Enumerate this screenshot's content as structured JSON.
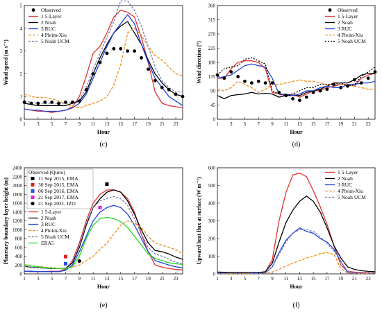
{
  "chart_data": [
    {
      "id": "c",
      "type": "line",
      "panel_label": "(c)",
      "xlabel": "Hour",
      "ylabel": "Wind speed (m s⁻¹)",
      "xlim": [
        1,
        24
      ],
      "ylim": [
        0,
        5
      ],
      "xticks": [
        1,
        3,
        5,
        7,
        9,
        11,
        13,
        15,
        17,
        19,
        21,
        23
      ],
      "yticks": [
        0,
        1,
        2,
        3,
        4,
        5
      ],
      "legend_position": "top-left",
      "x": [
        1,
        2,
        3,
        4,
        5,
        6,
        7,
        8,
        9,
        10,
        11,
        12,
        13,
        14,
        15,
        16,
        17,
        18,
        19,
        20,
        21,
        22,
        23,
        24
      ],
      "observed": {
        "name": "Observed",
        "color": "#000000",
        "values": [
          0.75,
          0.7,
          0.7,
          0.75,
          0.75,
          0.7,
          0.75,
          0.75,
          0.8,
          1.3,
          2.0,
          2.5,
          2.9,
          3.1,
          3.1,
          3.0,
          3.0,
          2.7,
          2.2,
          1.7,
          1.4,
          1.3,
          1.1,
          1.0
        ]
      },
      "series": [
        {
          "name": "1 5-Layer",
          "color": "#e03030",
          "dash": "",
          "values": [
            0.45,
            0.4,
            0.35,
            0.35,
            0.3,
            0.35,
            0.4,
            0.55,
            1.0,
            1.9,
            2.9,
            3.2,
            3.8,
            4.5,
            4.8,
            4.7,
            4.5,
            3.6,
            2.5,
            1.2,
            0.7,
            0.6,
            0.55,
            0.5
          ]
        },
        {
          "name": "2 Noah",
          "color": "#000000",
          "dash": "",
          "values": [
            0.7,
            0.65,
            0.6,
            0.6,
            0.6,
            0.6,
            0.6,
            0.7,
            0.8,
            1.2,
            2.0,
            2.7,
            3.3,
            3.8,
            4.1,
            4.3,
            3.8,
            3.3,
            2.6,
            2.0,
            1.6,
            1.3,
            1.1,
            1.0
          ]
        },
        {
          "name": "3 RUC",
          "color": "#1f3fd8",
          "dash": "",
          "values": [
            0.45,
            0.4,
            0.4,
            0.35,
            0.35,
            0.35,
            0.4,
            0.5,
            0.7,
            1.1,
            1.8,
            2.5,
            3.2,
            3.8,
            4.2,
            4.6,
            4.2,
            3.3,
            2.5,
            1.8,
            1.4,
            1.0,
            0.8,
            0.6
          ]
        },
        {
          "name": "4 Pleim-Xiu",
          "color": "#f08c1e",
          "dash": "4,2",
          "values": [
            1.1,
            1.0,
            0.95,
            0.95,
            0.9,
            0.8,
            0.7,
            0.55,
            0.5,
            0.6,
            0.7,
            0.8,
            1.0,
            1.5,
            2.4,
            3.8,
            4.0,
            3.7,
            3.2,
            2.8,
            2.6,
            2.3,
            2.0,
            1.9
          ]
        },
        {
          "name": "5 Noah UCM",
          "color": "#7a7ab8",
          "dash": "3,2",
          "values": [
            0.8,
            0.75,
            0.7,
            0.7,
            0.7,
            0.7,
            0.7,
            0.75,
            0.85,
            1.4,
            2.2,
            2.9,
            3.6,
            4.3,
            5.2,
            5.2,
            4.8,
            4.1,
            3.2,
            2.3,
            1.7,
            1.4,
            1.2,
            1.2
          ]
        }
      ]
    },
    {
      "id": "d",
      "type": "line",
      "panel_label": "(d)",
      "xlabel": "Hour",
      "ylabel": "Wind direction (º)",
      "xlim": [
        1,
        24
      ],
      "ylim": [
        0,
        360
      ],
      "xticks": [
        1,
        3,
        5,
        7,
        9,
        11,
        13,
        15,
        17,
        19,
        21,
        23
      ],
      "yticks": [
        0,
        45,
        90,
        135,
        180,
        225,
        270,
        315,
        360
      ],
      "legend_position": "top-right",
      "x": [
        1,
        2,
        3,
        4,
        5,
        6,
        7,
        8,
        9,
        10,
        11,
        12,
        13,
        14,
        15,
        16,
        17,
        18,
        19,
        20,
        21,
        22,
        23,
        24
      ],
      "observed": {
        "name": "Observed",
        "color": "#000000",
        "values": [
          140,
          130,
          150,
          135,
          120,
          115,
          120,
          115,
          115,
          85,
          75,
          65,
          60,
          70,
          85,
          90,
          95,
          110,
          100,
          105,
          125,
          115,
          130,
          150
        ]
      },
      "series": [
        {
          "name": "1 5-Layer",
          "color": "#e03030",
          "dash": "",
          "values": [
            130,
            130,
            160,
            180,
            185,
            185,
            180,
            160,
            85,
            80,
            75,
            80,
            70,
            80,
            90,
            90,
            100,
            105,
            110,
            110,
            105,
            130,
            140,
            145
          ]
        },
        {
          "name": "2 Noah",
          "color": "#000000",
          "dash": "",
          "values": [
            75,
            65,
            75,
            78,
            80,
            85,
            80,
            82,
            80,
            70,
            75,
            75,
            75,
            85,
            90,
            95,
            105,
            115,
            115,
            115,
            125,
            140,
            145,
            145
          ]
        },
        {
          "name": "3 RUC",
          "color": "#1f3fd8",
          "dash": "",
          "values": [
            130,
            135,
            140,
            155,
            170,
            175,
            170,
            165,
            130,
            80,
            80,
            75,
            80,
            90,
            90,
            100,
            105,
            100,
            100,
            110,
            110,
            115,
            115,
            120
          ]
        },
        {
          "name": "4 Pleim-Xiu",
          "color": "#f08c1e",
          "dash": "4,2",
          "values": [
            95,
            90,
            100,
            120,
            110,
            100,
            85,
            95,
            110,
            110,
            115,
            120,
            125,
            120,
            120,
            115,
            110,
            110,
            110,
            110,
            105,
            100,
            95,
            95
          ]
        },
        {
          "name": "5 Noah UCM",
          "color": "#000000",
          "dash": "2,2",
          "values": [
            140,
            160,
            165,
            170,
            190,
            195,
            185,
            175,
            90,
            80,
            75,
            80,
            90,
            100,
            100,
            110,
            110,
            110,
            115,
            105,
            110,
            135,
            150,
            165
          ]
        }
      ]
    },
    {
      "id": "e",
      "type": "line",
      "panel_label": "(e)",
      "xlabel": "Hour",
      "ylabel": "Planetary boundary layer height (m)",
      "xlim": [
        1,
        24
      ],
      "ylim": [
        0,
        2400
      ],
      "xticks": [
        1,
        3,
        5,
        7,
        9,
        11,
        13,
        15,
        17,
        19,
        21,
        23
      ],
      "yticks": [
        0,
        200,
        400,
        600,
        800,
        1000,
        1200,
        1400,
        1600,
        1800,
        2000,
        2200,
        2400
      ],
      "legend_position": "top-left",
      "x": [
        1,
        2,
        3,
        4,
        5,
        6,
        7,
        8,
        9,
        10,
        11,
        12,
        13,
        14,
        15,
        16,
        17,
        18,
        19,
        20,
        21,
        22,
        23,
        24
      ],
      "observed_title": "Observed (Quito)",
      "observed_points": [
        {
          "name": "11 Sep 2015, EMA",
          "color": "#000000",
          "marker": "square",
          "x": 13,
          "y": 2030
        },
        {
          "name": "30 Sep 2015, EMA",
          "color": "#e02020",
          "marker": "square",
          "x": 7,
          "y": 390
        },
        {
          "name": "06 Sep 2016, EMA",
          "color": "#2050e0",
          "marker": "square",
          "x": 7,
          "y": 230
        },
        {
          "name": "21 Sep 2017, EMA",
          "color": "#e020e0",
          "marker": "square",
          "x": 12,
          "y": 1500
        },
        {
          "name": "21 Sep 2021, IZO",
          "color": "#000000",
          "marker": "circle",
          "x": 9,
          "y": 290
        }
      ],
      "series": [
        {
          "name": "1 5-Layer",
          "color": "#e03030",
          "dash": "",
          "values": [
            60,
            50,
            50,
            50,
            60,
            60,
            100,
            300,
            700,
            1200,
            1600,
            1800,
            1900,
            1900,
            1850,
            1700,
            1400,
            900,
            500,
            200,
            150,
            120,
            100,
            90
          ]
        },
        {
          "name": "2 Noah",
          "color": "#000000",
          "dash": "",
          "values": [
            170,
            150,
            140,
            130,
            120,
            120,
            120,
            250,
            600,
            1100,
            1500,
            1700,
            1850,
            1900,
            1850,
            1650,
            1350,
            1000,
            700,
            530,
            500,
            450,
            380,
            330
          ]
        },
        {
          "name": "3 RUC",
          "color": "#1f3fd8",
          "dash": "",
          "values": [
            60,
            60,
            50,
            50,
            50,
            50,
            80,
            200,
            500,
            850,
            1200,
            1400,
            1500,
            1550,
            1500,
            1350,
            1100,
            800,
            500,
            300,
            250,
            200,
            160,
            140
          ]
        },
        {
          "name": "4 Pleim-Xiu",
          "color": "#f08c1e",
          "dash": "4,2",
          "values": [
            200,
            180,
            170,
            150,
            140,
            130,
            120,
            150,
            200,
            300,
            400,
            550,
            700,
            900,
            1100,
            1200,
            1150,
            1050,
            850,
            700,
            650,
            600,
            550,
            450
          ]
        },
        {
          "name": "5 Noah UCM",
          "color": "#7a7ab8",
          "dash": "3,2",
          "values": [
            170,
            150,
            140,
            130,
            120,
            120,
            130,
            280,
            650,
            1150,
            1500,
            1650,
            1700,
            1750,
            1700,
            1550,
            1250,
            900,
            600,
            450,
            400,
            330,
            260,
            230
          ]
        },
        {
          "name": "ERA5",
          "color": "#22dd22",
          "dash": "",
          "values": [
            210,
            180,
            160,
            140,
            130,
            120,
            110,
            160,
            400,
            800,
            1100,
            1250,
            1280,
            1250,
            1180,
            1050,
            850,
            650,
            450,
            350,
            300,
            250,
            230,
            210
          ]
        }
      ]
    },
    {
      "id": "f",
      "type": "line",
      "panel_label": "(f)",
      "xlabel": "Hour",
      "ylabel": "Upward heat flux at surface (W m⁻²)",
      "xlim": [
        1,
        24
      ],
      "ylim": [
        0,
        600
      ],
      "xticks": [
        1,
        3,
        5,
        7,
        9,
        11,
        13,
        15,
        17,
        19,
        21,
        23
      ],
      "yticks": [
        0,
        100,
        200,
        300,
        400,
        500,
        600
      ],
      "legend_position": "top-right",
      "x": [
        1,
        2,
        3,
        4,
        5,
        6,
        7,
        8,
        9,
        10,
        11,
        12,
        13,
        14,
        15,
        16,
        17,
        18,
        19,
        20,
        21,
        22,
        23,
        24
      ],
      "series": [
        {
          "name": "1 5-Layer",
          "color": "#e03030",
          "dash": "",
          "values": [
            5,
            5,
            4,
            4,
            4,
            4,
            4,
            10,
            80,
            300,
            460,
            560,
            570,
            550,
            470,
            380,
            280,
            160,
            50,
            15,
            10,
            8,
            6,
            5
          ]
        },
        {
          "name": "2 Noah",
          "color": "#000000",
          "dash": "",
          "values": [
            10,
            9,
            8,
            8,
            8,
            8,
            8,
            12,
            60,
            180,
            290,
            360,
            410,
            440,
            410,
            350,
            260,
            160,
            90,
            40,
            25,
            18,
            14,
            12
          ]
        },
        {
          "name": "3 RUC",
          "color": "#1f3fd8",
          "dash": "",
          "values": [
            3,
            3,
            3,
            3,
            3,
            3,
            3,
            5,
            40,
            120,
            190,
            230,
            260,
            240,
            230,
            200,
            180,
            140,
            70,
            8,
            5,
            4,
            4,
            3
          ]
        },
        {
          "name": "4 Pleim-Xiu",
          "color": "#f08c1e",
          "dash": "4,2",
          "values": [
            2,
            2,
            2,
            2,
            2,
            2,
            2,
            3,
            10,
            25,
            45,
            60,
            75,
            90,
            100,
            115,
            120,
            110,
            30,
            5,
            3,
            2,
            2,
            2
          ]
        },
        {
          "name": "5 Noah UCM",
          "color": "#7a7ab8",
          "dash": "3,2",
          "values": [
            3,
            3,
            3,
            3,
            3,
            3,
            3,
            5,
            40,
            110,
            180,
            230,
            250,
            250,
            240,
            210,
            170,
            130,
            70,
            15,
            6,
            4,
            4,
            3
          ]
        }
      ]
    }
  ]
}
